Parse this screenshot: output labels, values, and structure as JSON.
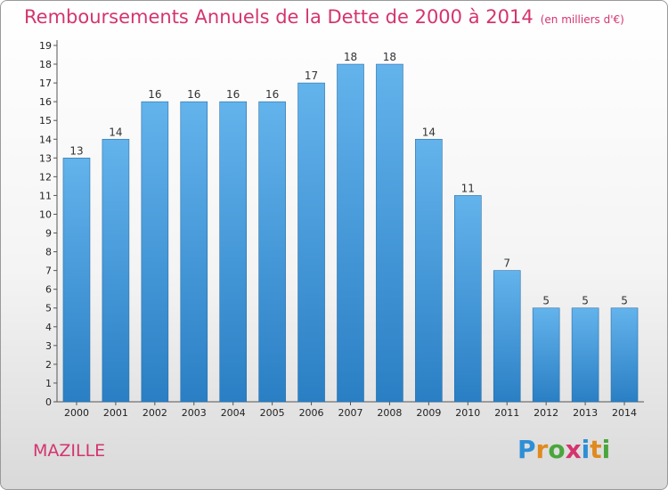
{
  "header": {
    "title": "Remboursements Annuels de la Dette de 2000 à 2014",
    "unit": "(en milliers d'€)"
  },
  "commune": "MAZILLE",
  "logo": {
    "text": "Proxiti",
    "letters": [
      {
        "char": "P",
        "color": "#2e8fd6"
      },
      {
        "char": "r",
        "color": "#e08a1e"
      },
      {
        "char": "o",
        "color": "#4aa63c"
      },
      {
        "char": "x",
        "color": "#d4346e"
      },
      {
        "char": "i",
        "color": "#2e8fd6"
      },
      {
        "char": "t",
        "color": "#e08a1e"
      },
      {
        "char": "i",
        "color": "#4aa63c"
      }
    ]
  },
  "colors": {
    "title": "#d4346e",
    "bar_top": "#63b3ec",
    "bar_bottom": "#2a7fc4"
  },
  "chart_data": {
    "type": "bar",
    "title": "Remboursements Annuels de la Dette de 2000 à 2014",
    "subtitle": "(en milliers d'€)",
    "xlabel": "",
    "ylabel": "",
    "categories": [
      "2000",
      "2001",
      "2002",
      "2003",
      "2004",
      "2005",
      "2006",
      "2007",
      "2008",
      "2009",
      "2010",
      "2011",
      "2012",
      "2013",
      "2014"
    ],
    "values": [
      13,
      14,
      16,
      16,
      16,
      16,
      17,
      18,
      18,
      14,
      11,
      7,
      5,
      5,
      5
    ],
    "ylim": [
      0,
      19
    ],
    "yticks": [
      0,
      1,
      2,
      3,
      4,
      5,
      6,
      7,
      8,
      9,
      10,
      11,
      12,
      13,
      14,
      15,
      16,
      17,
      18,
      19
    ],
    "data_labels": true,
    "grid": false,
    "legend": "none"
  }
}
